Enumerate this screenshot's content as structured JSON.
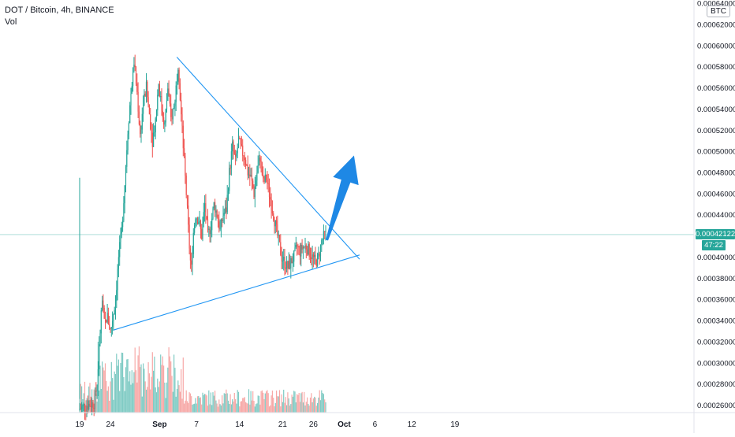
{
  "legend": {
    "symbol": "DOT / Bitcoin, 4h, BINANCE",
    "indicator": "Vol"
  },
  "currency_badge": "BTC",
  "last_price": {
    "value": 0.00042122,
    "label": "0.00042122",
    "countdown": "47:22"
  },
  "colors": {
    "up": "#26a69a",
    "down": "#ef5350",
    "up_volume": "#80cbc4",
    "down_volume": "#f7a9a7",
    "trendline": "#2196f3",
    "arrow": "#1e88e5",
    "last_price_line": "#26a69a"
  },
  "chart_data": {
    "type": "candlestick",
    "interval": "4h",
    "y_axis": {
      "ylim": [
        0.000253,
        0.000643
      ],
      "ticks": [
        "0.00026000",
        "0.00028000",
        "0.00030000",
        "0.00032000",
        "0.00034000",
        "0.00036000",
        "0.00038000",
        "0.00040000",
        "0.00042000",
        "0.00044000",
        "0.00046000",
        "0.00048000",
        "0.00050000",
        "0.00052000",
        "0.00054000",
        "0.00056000",
        "0.00058000",
        "0.00060000",
        "0.00062000",
        "0.00064000"
      ]
    },
    "x_axis": {
      "ticks": [
        {
          "label": "19",
          "day": 19,
          "bold": false
        },
        {
          "label": "24",
          "day": 24,
          "bold": false
        },
        {
          "label": "Sep",
          "day": 32,
          "bold": true
        },
        {
          "label": "7",
          "day": 38,
          "bold": false
        },
        {
          "label": "14",
          "day": 45,
          "bold": false
        },
        {
          "label": "21",
          "day": 52,
          "bold": false
        },
        {
          "label": "26",
          "day": 57,
          "bold": false
        },
        {
          "label": "Oct",
          "day": 62,
          "bold": true
        },
        {
          "label": "6",
          "day": 67,
          "bold": false
        },
        {
          "label": "12",
          "day": 73,
          "bold": false
        },
        {
          "label": "19",
          "day": 80,
          "bold": false
        }
      ]
    },
    "price_path": [
      [
        19.0,
        0.000256
      ],
      [
        20.2,
        0.00026
      ],
      [
        21.5,
        0.000262
      ],
      [
        22.0,
        0.00028
      ],
      [
        22.4,
        0.00032
      ],
      [
        22.8,
        0.00036
      ],
      [
        23.2,
        0.000335
      ],
      [
        23.6,
        0.000345
      ],
      [
        24.2,
        0.00033
      ],
      [
        24.6,
        0.000345
      ],
      [
        25.0,
        0.00036
      ],
      [
        25.5,
        0.0004
      ],
      [
        26.0,
        0.000425
      ],
      [
        26.5,
        0.00047
      ],
      [
        27.0,
        0.00052
      ],
      [
        27.5,
        0.000555
      ],
      [
        28.0,
        0.000585
      ],
      [
        28.5,
        0.000555
      ],
      [
        29.0,
        0.000515
      ],
      [
        29.5,
        0.000545
      ],
      [
        30.0,
        0.00056
      ],
      [
        30.5,
        0.000535
      ],
      [
        31.0,
        0.00051
      ],
      [
        31.5,
        0.00053
      ],
      [
        32.0,
        0.000565
      ],
      [
        32.5,
        0.00054
      ],
      [
        33.0,
        0.000525
      ],
      [
        33.5,
        0.00056
      ],
      [
        34.0,
        0.00053
      ],
      [
        34.6,
        0.000545
      ],
      [
        35.2,
        0.000585
      ],
      [
        35.6,
        0.00054
      ],
      [
        36.0,
        0.000505
      ],
      [
        36.5,
        0.00046
      ],
      [
        37.0,
        0.00041
      ],
      [
        37.3,
        0.000385
      ],
      [
        37.6,
        0.00042
      ],
      [
        38.0,
        0.00044
      ],
      [
        38.5,
        0.000435
      ],
      [
        39.0,
        0.00042
      ],
      [
        39.5,
        0.00045
      ],
      [
        40.0,
        0.00042
      ],
      [
        40.5,
        0.00043
      ],
      [
        41.0,
        0.00045
      ],
      [
        41.5,
        0.00044
      ],
      [
        42.0,
        0.000425
      ],
      [
        42.5,
        0.00044
      ],
      [
        43.0,
        0.000445
      ],
      [
        43.5,
        0.00048
      ],
      [
        44.0,
        0.000505
      ],
      [
        44.5,
        0.00049
      ],
      [
        45.0,
        0.00051
      ],
      [
        45.5,
        0.0005
      ],
      [
        46.0,
        0.000495
      ],
      [
        46.5,
        0.00048
      ],
      [
        47.0,
        0.000475
      ],
      [
        47.5,
        0.00046
      ],
      [
        48.0,
        0.00048
      ],
      [
        48.5,
        0.000495
      ],
      [
        49.0,
        0.00047
      ],
      [
        49.5,
        0.000475
      ],
      [
        50.0,
        0.00046
      ],
      [
        50.5,
        0.000445
      ],
      [
        51.0,
        0.00043
      ],
      [
        51.5,
        0.000415
      ],
      [
        52.0,
        0.0004
      ],
      [
        52.5,
        0.000395
      ],
      [
        53.0,
        0.00039
      ],
      [
        53.5,
        0.000395
      ],
      [
        54.0,
        0.0004
      ],
      [
        54.5,
        0.00041
      ],
      [
        55.0,
        0.000405
      ],
      [
        55.5,
        0.00041
      ],
      [
        56.0,
        0.00041
      ],
      [
        56.5,
        0.000405
      ],
      [
        57.0,
        0.0004
      ],
      [
        57.5,
        0.000395
      ],
      [
        58.0,
        0.0004
      ],
      [
        58.5,
        0.000415
      ],
      [
        59.0,
        0.000421
      ]
    ],
    "trendlines": [
      {
        "from": [
          34.8,
          0.000589
        ],
        "to": [
          64.5,
          0.000398
        ]
      },
      {
        "from": [
          24.5,
          0.000331
        ],
        "to": [
          64.5,
          0.000402
        ]
      }
    ],
    "projection_arrow": {
      "from": [
        59.2,
        0.000416
      ],
      "to": [
        63.6,
        0.000496
      ]
    },
    "vertical_marker_day": 19.0,
    "last_price_line": 0.00042122
  }
}
